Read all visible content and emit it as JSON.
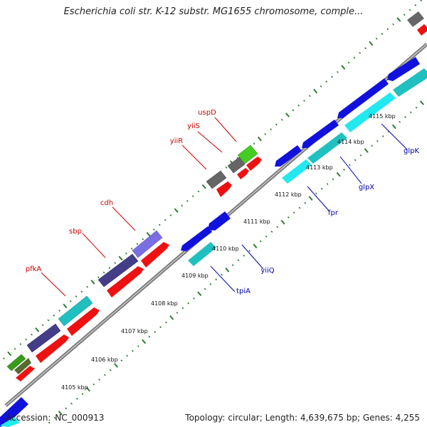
{
  "title": "Escherichia coli str. K-12 substr. MG1655 chromosome, comple...",
  "footer": {
    "accession_label": "Accession:",
    "accession": "NC_000913",
    "topology_label": "Topology:",
    "topology": "circular;",
    "length_label": "Length:",
    "length": "4,639,675 bp;",
    "genes_label": "Genes:",
    "genes": "4,255"
  },
  "colors": {
    "backbone": "#888888",
    "tick": "#2e7d32",
    "forward_label": "#cc0000",
    "reverse_label": "#0000aa"
  },
  "scale": {
    "unit": "kbp",
    "ticks": [
      4105,
      4106,
      4107,
      4108,
      4109,
      4110,
      4111,
      4112,
      4113,
      4114,
      4115
    ]
  },
  "genes_forward": [
    {
      "name": "pfkA",
      "labeled": true
    },
    {
      "name": "sbp",
      "labeled": true
    },
    {
      "name": "cdh",
      "labeled": true
    },
    {
      "name": "yiiR",
      "labeled": true
    },
    {
      "name": "yiiS",
      "labeled": true
    },
    {
      "name": "uspD",
      "labeled": true
    }
  ],
  "genes_reverse": [
    {
      "name": "tpiA",
      "labeled": true
    },
    {
      "name": "yiiQ",
      "labeled": true
    },
    {
      "name": "fpr",
      "labeled": true
    },
    {
      "name": "glpX",
      "labeled": true
    },
    {
      "name": "glpK",
      "labeled": true
    }
  ]
}
